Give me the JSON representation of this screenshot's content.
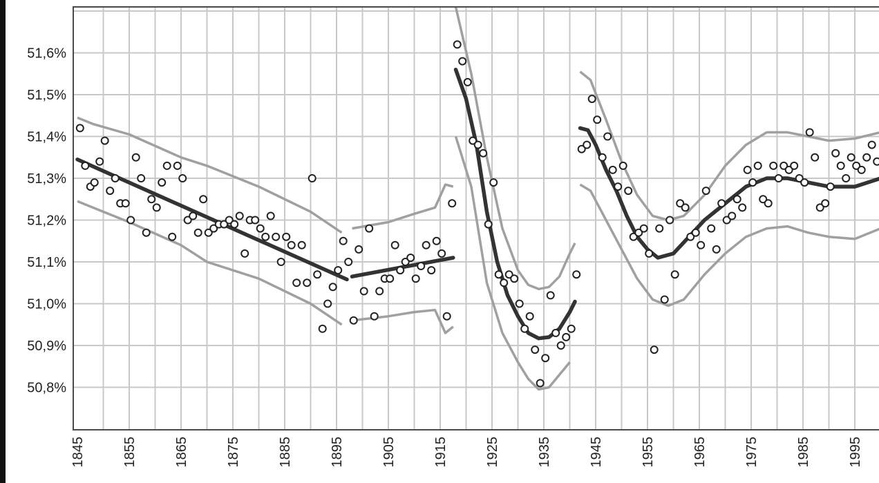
{
  "chart_data": {
    "type": "scatter",
    "title": "",
    "xlabel": "",
    "ylabel": "",
    "xlim": [
      1845,
      2000
    ],
    "ylim": [
      50.7,
      51.72
    ],
    "grid": true,
    "x_ticks": [
      1845,
      1855,
      1865,
      1875,
      1885,
      1895,
      1905,
      1915,
      1925,
      1935,
      1945,
      1955,
      1965,
      1975,
      1985,
      1995
    ],
    "y_ticks": [
      {
        "value": 50.8,
        "label": "50,8%"
      },
      {
        "value": 50.9,
        "label": "50,9%"
      },
      {
        "value": 51.0,
        "label": "51,0%"
      },
      {
        "value": 51.1,
        "label": "51,1%"
      },
      {
        "value": 51.2,
        "label": "51,2%"
      },
      {
        "value": 51.3,
        "label": "51,3%"
      },
      {
        "value": 51.4,
        "label": "51,4%"
      },
      {
        "value": 51.5,
        "label": "51,5%"
      },
      {
        "value": 51.6,
        "label": "51,6%"
      }
    ],
    "points": [
      [
        1845.5,
        51.42
      ],
      [
        1846.5,
        51.33
      ],
      [
        1847.5,
        51.28
      ],
      [
        1848.3,
        51.29
      ],
      [
        1849.3,
        51.34
      ],
      [
        1850.3,
        51.39
      ],
      [
        1851.3,
        51.27
      ],
      [
        1852.3,
        51.3
      ],
      [
        1853.3,
        51.24
      ],
      [
        1854.3,
        51.24
      ],
      [
        1855.3,
        51.2
      ],
      [
        1856.3,
        51.35
      ],
      [
        1857.3,
        51.3
      ],
      [
        1858.3,
        51.17
      ],
      [
        1859.3,
        51.25
      ],
      [
        1860.3,
        51.23
      ],
      [
        1861.3,
        51.29
      ],
      [
        1862.3,
        51.33
      ],
      [
        1863.3,
        51.16
      ],
      [
        1864.3,
        51.33
      ],
      [
        1865.3,
        51.3
      ],
      [
        1866.3,
        51.2
      ],
      [
        1867.3,
        51.21
      ],
      [
        1868.3,
        51.17
      ],
      [
        1869.3,
        51.25
      ],
      [
        1870.3,
        51.17
      ],
      [
        1871.3,
        51.18
      ],
      [
        1872.3,
        51.19
      ],
      [
        1873.3,
        51.19
      ],
      [
        1874.3,
        51.2
      ],
      [
        1875.3,
        51.19
      ],
      [
        1876.3,
        51.21
      ],
      [
        1877.3,
        51.12
      ],
      [
        1878.3,
        51.2
      ],
      [
        1879.3,
        51.2
      ],
      [
        1880.3,
        51.18
      ],
      [
        1881.3,
        51.16
      ],
      [
        1882.3,
        51.21
      ],
      [
        1883.3,
        51.16
      ],
      [
        1884.3,
        51.1
      ],
      [
        1885.3,
        51.16
      ],
      [
        1886.3,
        51.14
      ],
      [
        1887.3,
        51.05
      ],
      [
        1888.3,
        51.14
      ],
      [
        1889.3,
        51.05
      ],
      [
        1890.3,
        51.3
      ],
      [
        1891.3,
        51.07
      ],
      [
        1892.3,
        50.94
      ],
      [
        1893.3,
        51.0
      ],
      [
        1894.3,
        51.04
      ],
      [
        1895.3,
        51.08
      ],
      [
        1896.3,
        51.15
      ],
      [
        1897.3,
        51.1
      ],
      [
        1898.3,
        50.96
      ],
      [
        1899.3,
        51.13
      ],
      [
        1900.3,
        51.03
      ],
      [
        1901.3,
        51.18
      ],
      [
        1902.3,
        50.97
      ],
      [
        1903.3,
        51.03
      ],
      [
        1904.3,
        51.06
      ],
      [
        1905.3,
        51.06
      ],
      [
        1906.3,
        51.14
      ],
      [
        1907.3,
        51.08
      ],
      [
        1908.3,
        51.1
      ],
      [
        1909.3,
        51.11
      ],
      [
        1910.3,
        51.06
      ],
      [
        1911.3,
        51.09
      ],
      [
        1912.3,
        51.14
      ],
      [
        1913.3,
        51.08
      ],
      [
        1914.3,
        51.15
      ],
      [
        1915.3,
        51.12
      ],
      [
        1916.3,
        50.97
      ],
      [
        1917.3,
        51.24
      ],
      [
        1918.3,
        51.62
      ],
      [
        1919.3,
        51.58
      ],
      [
        1920.3,
        51.53
      ],
      [
        1921.3,
        51.39
      ],
      [
        1922.3,
        51.38
      ],
      [
        1923.3,
        51.36
      ],
      [
        1924.3,
        51.19
      ],
      [
        1925.3,
        51.29
      ],
      [
        1926.3,
        51.07
      ],
      [
        1927.3,
        51.05
      ],
      [
        1928.3,
        51.07
      ],
      [
        1929.3,
        51.06
      ],
      [
        1930.3,
        51.0
      ],
      [
        1931.3,
        50.94
      ],
      [
        1932.3,
        50.97
      ],
      [
        1933.3,
        50.89
      ],
      [
        1934.3,
        50.81
      ],
      [
        1935.3,
        50.87
      ],
      [
        1936.3,
        51.02
      ],
      [
        1937.3,
        50.93
      ],
      [
        1938.3,
        50.9
      ],
      [
        1939.3,
        50.92
      ],
      [
        1940.3,
        50.94
      ],
      [
        1941.3,
        51.07
      ],
      [
        1942.3,
        51.37
      ],
      [
        1943.3,
        51.38
      ],
      [
        1944.3,
        51.49
      ],
      [
        1945.3,
        51.44
      ],
      [
        1946.3,
        51.35
      ],
      [
        1947.3,
        51.4
      ],
      [
        1948.3,
        51.32
      ],
      [
        1949.3,
        51.28
      ],
      [
        1950.3,
        51.33
      ],
      [
        1951.3,
        51.27
      ],
      [
        1952.3,
        51.16
      ],
      [
        1953.3,
        51.17
      ],
      [
        1954.3,
        51.18
      ],
      [
        1955.3,
        51.12
      ],
      [
        1956.3,
        50.89
      ],
      [
        1957.3,
        51.18
      ],
      [
        1958.3,
        51.01
      ],
      [
        1959.3,
        51.2
      ],
      [
        1960.3,
        51.07
      ],
      [
        1961.3,
        51.24
      ],
      [
        1962.3,
        51.23
      ],
      [
        1963.3,
        51.16
      ],
      [
        1964.3,
        51.17
      ],
      [
        1965.3,
        51.14
      ],
      [
        1966.3,
        51.27
      ],
      [
        1967.3,
        51.18
      ],
      [
        1968.3,
        51.13
      ],
      [
        1969.3,
        51.24
      ],
      [
        1970.3,
        51.2
      ],
      [
        1971.3,
        51.21
      ],
      [
        1972.3,
        51.25
      ],
      [
        1973.3,
        51.23
      ],
      [
        1974.3,
        51.32
      ],
      [
        1975.3,
        51.29
      ],
      [
        1976.3,
        51.33
      ],
      [
        1977.3,
        51.25
      ],
      [
        1978.3,
        51.24
      ],
      [
        1979.3,
        51.33
      ],
      [
        1980.3,
        51.3
      ],
      [
        1981.3,
        51.33
      ],
      [
        1982.3,
        51.32
      ],
      [
        1983.3,
        51.33
      ],
      [
        1984.3,
        51.3
      ],
      [
        1985.3,
        51.29
      ],
      [
        1986.3,
        51.41
      ],
      [
        1987.3,
        51.35
      ],
      [
        1988.3,
        51.23
      ],
      [
        1989.3,
        51.24
      ],
      [
        1990.3,
        51.28
      ],
      [
        1991.3,
        51.36
      ],
      [
        1992.3,
        51.33
      ],
      [
        1993.3,
        51.3
      ],
      [
        1994.3,
        51.35
      ],
      [
        1995.3,
        51.33
      ],
      [
        1996.3,
        51.32
      ],
      [
        1997.3,
        51.35
      ],
      [
        1998.3,
        51.38
      ],
      [
        1999.3,
        51.34
      ]
    ],
    "trend_segments": [
      [
        [
          1845,
          51.345
        ],
        [
          1897,
          51.058
        ]
      ],
      [
        [
          1898,
          51.065
        ],
        [
          1917.5,
          51.11
        ]
      ],
      [
        [
          1918,
          51.56
        ],
        [
          1920,
          51.49
        ],
        [
          1922,
          51.38
        ],
        [
          1924,
          51.22
        ],
        [
          1926,
          51.1
        ],
        [
          1928,
          51.02
        ],
        [
          1930,
          50.97
        ],
        [
          1932,
          50.93
        ],
        [
          1934,
          50.917
        ],
        [
          1936,
          50.92
        ],
        [
          1938,
          50.94
        ],
        [
          1940,
          50.98
        ],
        [
          1941,
          51.005
        ]
      ],
      [
        [
          1942,
          51.42
        ],
        [
          1943.5,
          51.415
        ],
        [
          1945,
          51.38
        ],
        [
          1947,
          51.32
        ],
        [
          1949,
          51.27
        ],
        [
          1951,
          51.21
        ],
        [
          1953,
          51.16
        ],
        [
          1955,
          51.13
        ],
        [
          1957,
          51.11
        ],
        [
          1960,
          51.12
        ],
        [
          1963,
          51.16
        ],
        [
          1966,
          51.2
        ],
        [
          1970,
          51.24
        ],
        [
          1974,
          51.28
        ],
        [
          1978,
          51.3
        ],
        [
          1982,
          51.3
        ],
        [
          1986,
          51.29
        ],
        [
          1990,
          51.28
        ],
        [
          1995,
          51.28
        ],
        [
          2000,
          51.3
        ]
      ]
    ],
    "band_upper_segments": [
      [
        [
          1845,
          51.445
        ],
        [
          1848,
          51.43
        ],
        [
          1855,
          51.405
        ],
        [
          1865,
          51.35
        ],
        [
          1870,
          51.33
        ],
        [
          1880,
          51.28
        ],
        [
          1890,
          51.22
        ],
        [
          1896,
          51.17
        ]
      ],
      [
        [
          1898,
          51.18
        ],
        [
          1905,
          51.195
        ],
        [
          1910,
          51.215
        ],
        [
          1914,
          51.23
        ],
        [
          1916,
          51.285
        ],
        [
          1917.5,
          51.28
        ]
      ],
      [
        [
          1918,
          51.71
        ],
        [
          1921,
          51.55
        ],
        [
          1924,
          51.35
        ],
        [
          1927,
          51.18
        ],
        [
          1930,
          51.08
        ],
        [
          1932,
          51.045
        ],
        [
          1934,
          51.035
        ],
        [
          1936,
          51.04
        ],
        [
          1938,
          51.065
        ],
        [
          1940,
          51.12
        ],
        [
          1941,
          51.145
        ]
      ],
      [
        [
          1942,
          51.555
        ],
        [
          1944,
          51.535
        ],
        [
          1947,
          51.44
        ],
        [
          1950,
          51.34
        ],
        [
          1953,
          51.26
        ],
        [
          1956,
          51.21
        ],
        [
          1959,
          51.2
        ],
        [
          1962,
          51.21
        ],
        [
          1966,
          51.26
        ],
        [
          1970,
          51.33
        ],
        [
          1974,
          51.38
        ],
        [
          1978,
          51.41
        ],
        [
          1982,
          51.41
        ],
        [
          1986,
          51.4
        ],
        [
          1990,
          51.39
        ],
        [
          1995,
          51.395
        ],
        [
          2000,
          51.41
        ]
      ]
    ],
    "band_lower_segments": [
      [
        [
          1845,
          51.245
        ],
        [
          1848,
          51.23
        ],
        [
          1855,
          51.195
        ],
        [
          1865,
          51.14
        ],
        [
          1870,
          51.1
        ],
        [
          1880,
          51.06
        ],
        [
          1890,
          51.0
        ],
        [
          1896,
          50.95
        ]
      ],
      [
        [
          1898,
          50.96
        ],
        [
          1905,
          50.97
        ],
        [
          1910,
          50.98
        ],
        [
          1914,
          50.985
        ],
        [
          1916,
          50.93
        ],
        [
          1917.5,
          50.945
        ]
      ],
      [
        [
          1918,
          51.4
        ],
        [
          1921,
          51.28
        ],
        [
          1924,
          51.05
        ],
        [
          1927,
          50.93
        ],
        [
          1930,
          50.86
        ],
        [
          1932,
          50.82
        ],
        [
          1934,
          50.795
        ],
        [
          1936,
          50.8
        ],
        [
          1938,
          50.83
        ],
        [
          1940,
          50.86
        ]
      ],
      [
        [
          1942,
          51.285
        ],
        [
          1944,
          51.27
        ],
        [
          1947,
          51.2
        ],
        [
          1950,
          51.13
        ],
        [
          1953,
          51.06
        ],
        [
          1956,
          51.01
        ],
        [
          1959,
          50.995
        ],
        [
          1962,
          51.01
        ],
        [
          1966,
          51.07
        ],
        [
          1970,
          51.12
        ],
        [
          1974,
          51.16
        ],
        [
          1978,
          51.18
        ],
        [
          1982,
          51.185
        ],
        [
          1986,
          51.17
        ],
        [
          1990,
          51.16
        ],
        [
          1995,
          51.155
        ],
        [
          2000,
          51.18
        ]
      ]
    ],
    "colors": {
      "trend": "#333333",
      "band": "#a0a0a0",
      "points_fill": "#ffffff",
      "points_stroke": "#222222",
      "grid": "#c8c8c8",
      "frame": "#4a4a4a"
    }
  }
}
